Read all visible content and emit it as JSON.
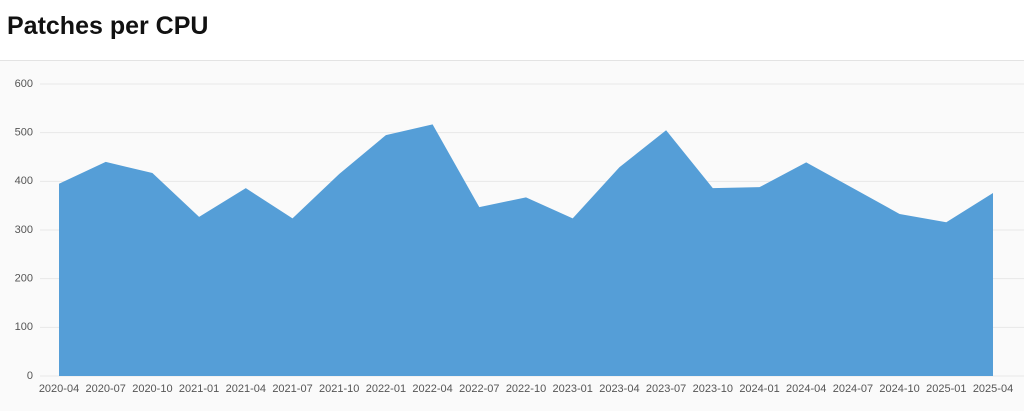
{
  "chart_data": {
    "type": "area",
    "title": "Patches per CPU",
    "categories": [
      "2020-04",
      "2020-07",
      "2020-10",
      "2021-01",
      "2021-04",
      "2021-07",
      "2021-10",
      "2022-01",
      "2022-04",
      "2022-07",
      "2022-10",
      "2023-01",
      "2023-04",
      "2023-07",
      "2023-10",
      "2024-01",
      "2024-04",
      "2024-07",
      "2024-10",
      "2025-01",
      "2025-04"
    ],
    "values": [
      395,
      440,
      417,
      327,
      386,
      324,
      415,
      495,
      517,
      347,
      367,
      324,
      429,
      505,
      386,
      388,
      439,
      386,
      333,
      316,
      376
    ],
    "color": "#559ed7",
    "ylim": [
      0,
      600
    ],
    "yticks": [
      0,
      100,
      200,
      300,
      400,
      500,
      600
    ],
    "grid": true
  }
}
